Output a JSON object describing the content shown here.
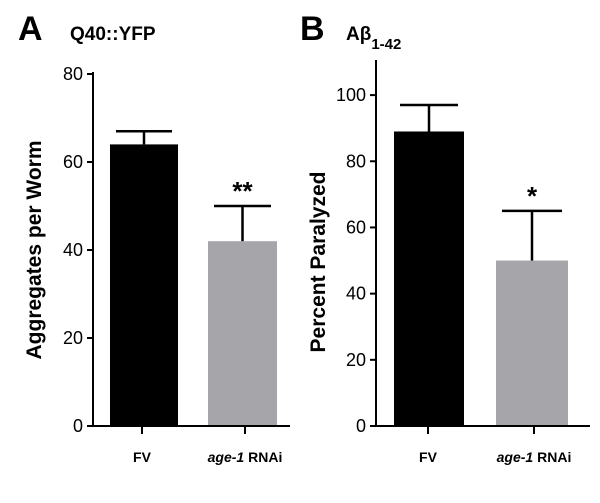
{
  "chart_data": [
    {
      "type": "bar",
      "panel": "A",
      "title": "Q40::YFP",
      "xlabel": "",
      "ylabel": "Aggregates per Worm",
      "ylim": [
        0,
        80
      ],
      "yticks": [
        0,
        20,
        40,
        60,
        80
      ],
      "categories": [
        {
          "plain": "FV",
          "italic": "",
          "rest": ""
        },
        {
          "plain": "",
          "italic": "age-1",
          "rest": " RNAi"
        }
      ],
      "values": [
        64,
        42
      ],
      "errors": [
        3,
        8
      ],
      "bar_colors": [
        "#000000",
        "#a6a6aa"
      ],
      "significance": [
        "",
        "**"
      ]
    },
    {
      "type": "bar",
      "panel": "B",
      "title": "Aβ",
      "title_subscript": "1-42",
      "xlabel": "",
      "ylabel": "Percent Paralyzed",
      "ylim": [
        0,
        110
      ],
      "yticks": [
        0,
        20,
        40,
        60,
        80,
        100
      ],
      "categories": [
        {
          "plain": "FV",
          "italic": "",
          "rest": ""
        },
        {
          "plain": "",
          "italic": "age-1",
          "rest": " RNAi"
        }
      ],
      "values": [
        89,
        50
      ],
      "errors": [
        8,
        15
      ],
      "bar_colors": [
        "#000000",
        "#a6a6aa"
      ],
      "significance": [
        "",
        "*"
      ]
    }
  ]
}
